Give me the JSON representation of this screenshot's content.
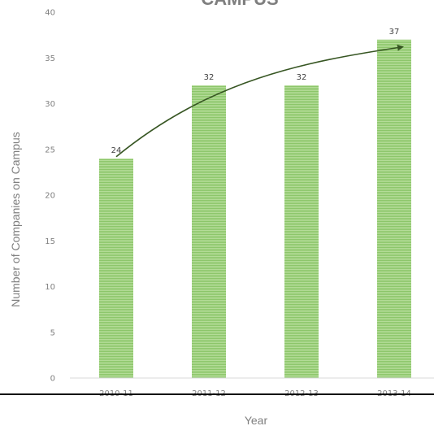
{
  "chart_data": {
    "type": "bar",
    "title": "CAMPUS",
    "xlabel": "Year",
    "ylabel": "Number of Companies on Campus",
    "categories": [
      "2010-11",
      "2011-12",
      "2012-13",
      "2013-14"
    ],
    "values": [
      24,
      32,
      32,
      37
    ],
    "ylim": [
      0,
      40
    ],
    "yticks": [
      "0",
      "5",
      "10",
      "15",
      "20",
      "25",
      "30",
      "35",
      "40"
    ],
    "grid": false,
    "legend": "none",
    "bar_color": "#8cc66a",
    "bar_stripe_color": "#b4dc98",
    "trend_arrow_color": "#375623",
    "trend_arrow": {
      "from_category": "2010-11",
      "to_category": "2013-14",
      "from_value": 24.2,
      "to_value": 36.2
    }
  }
}
